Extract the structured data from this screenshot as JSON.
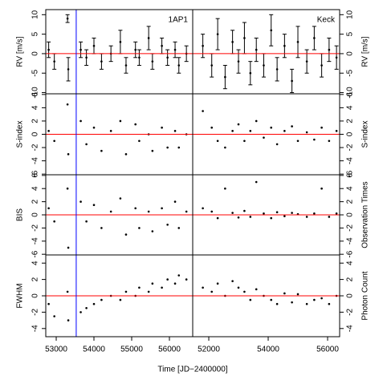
{
  "chart_data": [
    {
      "type": "errorbar",
      "ylabel": "RV [m/s]",
      "label": "1AP1",
      "xlim": [
        52723,
        56617
      ],
      "ylim": [
        -10.3,
        11.3
      ],
      "yticks": [
        -10,
        -5,
        0,
        5,
        10
      ],
      "hline": 0,
      "hline_color": "#ff0000",
      "vline": 53530,
      "vline_color": "#0000ff",
      "color": "#000000",
      "x": [
        52800,
        52950,
        53300,
        53320,
        53650,
        53800,
        54000,
        54200,
        54450,
        54700,
        54850,
        55100,
        55200,
        55450,
        55550,
        55800,
        55950,
        56150,
        56250,
        56450
      ],
      "values": [
        1,
        -2,
        9,
        -4,
        1,
        -1,
        2,
        -2,
        0,
        3,
        -3,
        1,
        -1,
        4,
        -2,
        2,
        -1,
        1,
        -3,
        0
      ],
      "errors": [
        2,
        2,
        1,
        3,
        2,
        2,
        2,
        2,
        2,
        3,
        2,
        2,
        2,
        3,
        2,
        2,
        2,
        2,
        2,
        2
      ]
    },
    {
      "type": "errorbar",
      "ylabel": "RV [m/s]",
      "label": "Keck",
      "axis_side": "right",
      "xlim": [
        51459,
        56405
      ],
      "ylim": [
        -10.3,
        11.3
      ],
      "yticks": [
        -10,
        -5,
        0,
        5,
        10
      ],
      "hline": 0,
      "hline_color": "#ff0000",
      "color": "#000000",
      "x": [
        51800,
        52100,
        52300,
        52550,
        52800,
        53000,
        53200,
        53400,
        53600,
        53850,
        54100,
        54300,
        54550,
        54800,
        55000,
        55300,
        55550,
        55800,
        56050,
        56300
      ],
      "values": [
        2,
        -3,
        5,
        -6,
        3,
        -2,
        4,
        -5,
        1,
        -3,
        6,
        -4,
        2,
        -7,
        3,
        -2,
        4,
        -3,
        1,
        -1
      ],
      "errors": [
        3,
        3,
        4,
        3,
        3,
        3,
        4,
        3,
        3,
        3,
        4,
        3,
        3,
        3,
        4,
        3,
        3,
        3,
        3,
        3
      ]
    },
    {
      "type": "scatter",
      "ylabel": "S-index",
      "xlim": [
        52723,
        56617
      ],
      "ylim": [
        -6.1,
        6.1
      ],
      "yticks": [
        -6,
        -4,
        -2,
        0,
        2,
        4,
        6
      ],
      "hline": 0,
      "hline_color": "#ff0000",
      "vline": 53530,
      "vline_color": "#0000ff",
      "color": "#000000",
      "x": [
        52800,
        52950,
        53300,
        53320,
        53650,
        53800,
        54000,
        54200,
        54450,
        54700,
        54850,
        55100,
        55200,
        55450,
        55550,
        55800,
        55950,
        56150,
        56250,
        56450
      ],
      "values": [
        0.5,
        -1,
        4.5,
        -3,
        2,
        -1.5,
        1,
        -2.5,
        0.5,
        2,
        -3,
        1.5,
        -1,
        0,
        -2.5,
        1,
        -2,
        0.5,
        -2,
        0
      ]
    },
    {
      "type": "scatter",
      "ylabel": "S-index",
      "axis_side": "right",
      "xlim": [
        51459,
        56405
      ],
      "ylim": [
        -6.1,
        6.1
      ],
      "yticks": [
        -6,
        -4,
        -2,
        0,
        2,
        4,
        6
      ],
      "hline": 0,
      "hline_color": "#ff0000",
      "color": "#000000",
      "x": [
        51800,
        52100,
        52300,
        52550,
        52800,
        53000,
        53200,
        53400,
        53600,
        53850,
        54100,
        54300,
        54550,
        54800,
        55000,
        55300,
        55550,
        55800,
        56050,
        56300
      ],
      "values": [
        3.5,
        1,
        -1,
        -2,
        0.5,
        1.5,
        -1,
        0.5,
        2,
        -0.5,
        1,
        -1.5,
        0.5,
        1.2,
        -1,
        0.3,
        -0.8,
        1,
        -1,
        0.5
      ]
    },
    {
      "type": "scatter",
      "ylabel": "BIS",
      "xlim": [
        52723,
        56617
      ],
      "ylim": [
        -6.1,
        6.1
      ],
      "yticks": [
        -6,
        -4,
        -2,
        0,
        2,
        4,
        6
      ],
      "hline": 0,
      "hline_color": "#ff0000",
      "vline": 53530,
      "vline_color": "#0000ff",
      "color": "#000000",
      "x": [
        52800,
        52950,
        53300,
        53320,
        53650,
        53800,
        54000,
        54200,
        54450,
        54700,
        54850,
        55100,
        55200,
        55450,
        55550,
        55800,
        55950,
        56150,
        56250,
        56450
      ],
      "values": [
        1,
        -1,
        4,
        -5,
        2,
        -1,
        1.5,
        -2,
        0.5,
        2.5,
        -3,
        1,
        -2,
        0.5,
        -2.5,
        1,
        -1.5,
        2,
        -2,
        0.5
      ]
    },
    {
      "type": "scatter",
      "ylabel": "Observation Times",
      "axis_side": "right",
      "xlim": [
        51459,
        56405
      ],
      "ylim": [
        -6.1,
        6.1
      ],
      "yticks": [
        -6,
        -4,
        -2,
        0,
        2,
        4,
        6
      ],
      "hline": 0,
      "hline_color": "#ff0000",
      "color": "#000000",
      "x": [
        51800,
        52100,
        52300,
        52550,
        52800,
        53000,
        53200,
        53400,
        53600,
        53850,
        54100,
        54300,
        54550,
        54800,
        55000,
        55300,
        55550,
        55800,
        56050,
        56300
      ],
      "values": [
        1,
        0.5,
        -0.5,
        4,
        0.3,
        -0.4,
        0.6,
        -0.3,
        5,
        0.2,
        -0.5,
        0.4,
        -0.2,
        0.3,
        0.1,
        -0.3,
        0.2,
        4,
        -0.3,
        0.2
      ]
    },
    {
      "type": "scatter",
      "ylabel": "FWHM",
      "xlabel": "Time [JD−2400000]",
      "xlim": [
        52723,
        56617
      ],
      "ylim": [
        -5,
        5
      ],
      "yticks": [
        -4,
        -2,
        0,
        2,
        4
      ],
      "xticks": [
        53000,
        54000,
        55000,
        56000
      ],
      "hline": 0,
      "hline_color": "#ff0000",
      "vline": 53530,
      "vline_color": "#0000ff",
      "color": "#000000",
      "x": [
        52800,
        52950,
        53300,
        53320,
        53650,
        53800,
        54000,
        54200,
        54450,
        54700,
        54850,
        55100,
        55200,
        55450,
        55550,
        55800,
        55950,
        56150,
        56250,
        56450
      ],
      "values": [
        -1,
        -2.5,
        0.5,
        -3,
        -2,
        -1.5,
        -1,
        -0.5,
        0,
        -0.5,
        0.5,
        0,
        1,
        0.5,
        1.5,
        1,
        2,
        1.5,
        2.5,
        2
      ]
    },
    {
      "type": "scatter",
      "ylabel": "Photon Count",
      "axis_side": "right",
      "xlim": [
        51459,
        56405
      ],
      "ylim": [
        -5,
        5
      ],
      "yticks": [
        -4,
        -2,
        0,
        2,
        4
      ],
      "xticks": [
        52000,
        54000,
        56000
      ],
      "hline": 0,
      "hline_color": "#ff0000",
      "color": "#000000",
      "x": [
        51800,
        52100,
        52300,
        52550,
        52800,
        53000,
        53200,
        53400,
        53600,
        53850,
        54100,
        54300,
        54550,
        54800,
        55000,
        55300,
        55550,
        55800,
        56050,
        56300
      ],
      "values": [
        1,
        0.5,
        1.5,
        0,
        1.8,
        1,
        0.5,
        -0.5,
        0.8,
        0,
        -0.5,
        -1,
        0.3,
        -0.8,
        0.2,
        -1,
        -0.5,
        -0.3,
        -1,
        0
      ]
    }
  ]
}
